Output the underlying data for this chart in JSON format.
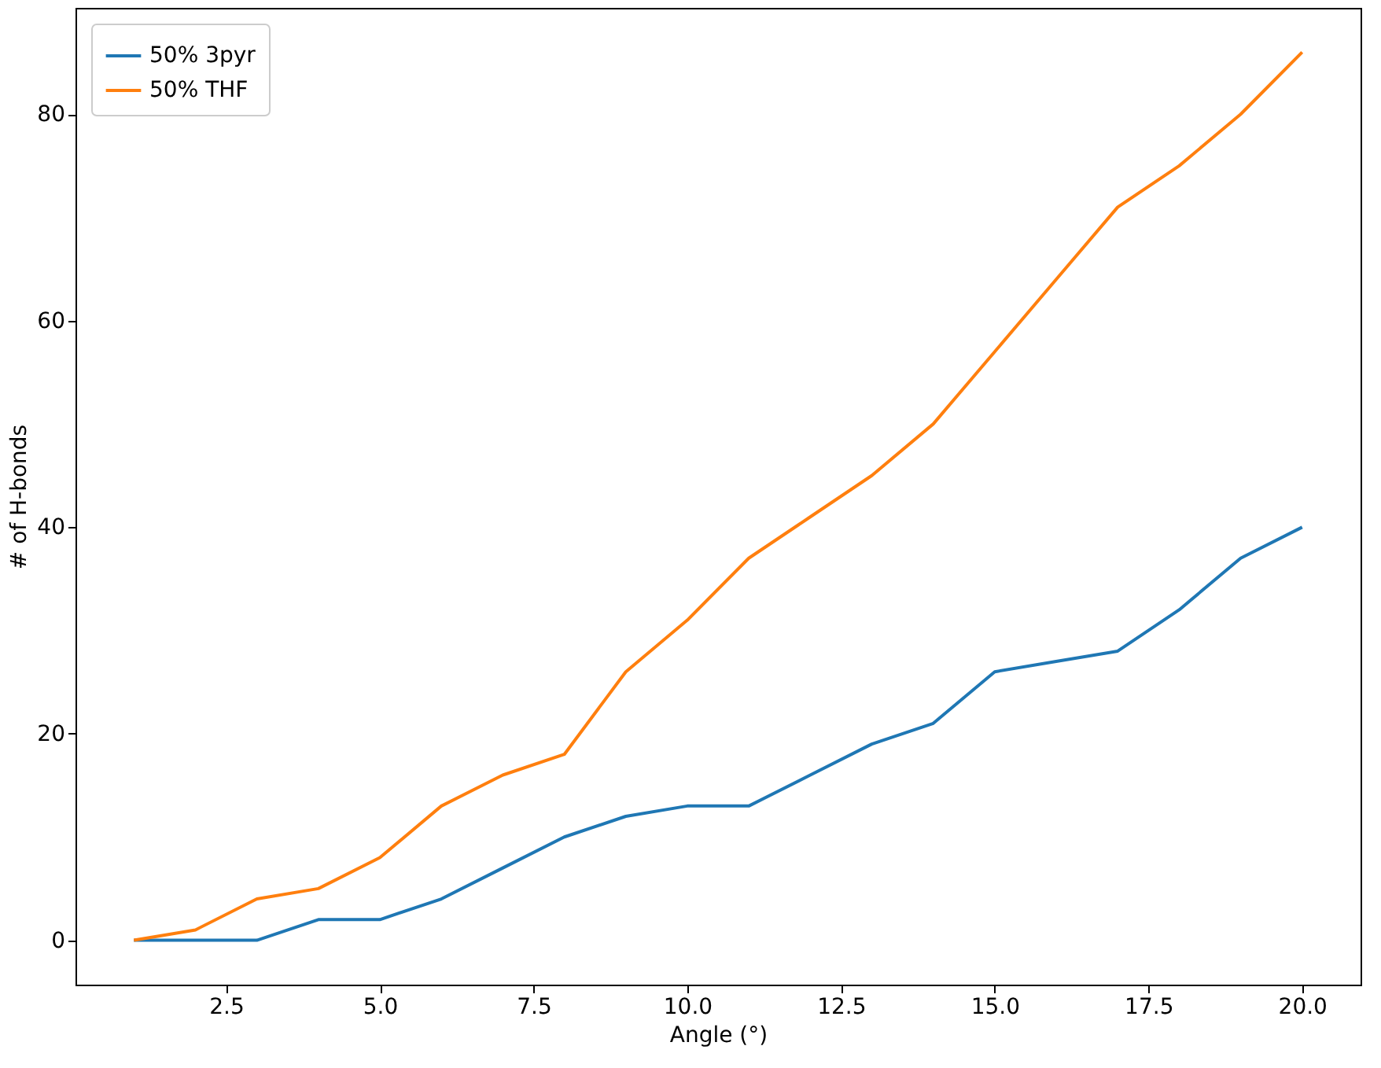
{
  "chart_data": {
    "type": "line",
    "xlabel": "Angle (°)",
    "ylabel": "# of H-bonds",
    "x": [
      1,
      2,
      3,
      4,
      5,
      6,
      7,
      8,
      9,
      10,
      11,
      12,
      13,
      14,
      15,
      16,
      17,
      18,
      19,
      20
    ],
    "series": [
      {
        "name": "50% 3pyr",
        "color": "#1f77b4",
        "values": [
          0,
          0,
          0,
          2,
          2,
          4,
          7,
          10,
          12,
          13,
          13,
          16,
          19,
          21,
          26,
          27,
          28,
          32,
          37,
          40
        ]
      },
      {
        "name": "50% THF",
        "color": "#ff7f0e",
        "values": [
          0,
          1,
          4,
          5,
          8,
          13,
          16,
          18,
          26,
          31,
          37,
          41,
          45,
          50,
          57,
          64,
          71,
          75,
          80,
          86
        ]
      }
    ],
    "xlim": [
      0.05,
      20.95
    ],
    "ylim": [
      -4.3,
      90.3
    ],
    "xticks": [
      {
        "value": 2.5,
        "label": "2.5"
      },
      {
        "value": 5,
        "label": "5.0"
      },
      {
        "value": 7.5,
        "label": "7.5"
      },
      {
        "value": 10,
        "label": "10.0"
      },
      {
        "value": 12.5,
        "label": "12.5"
      },
      {
        "value": 15,
        "label": "15.0"
      },
      {
        "value": 17.5,
        "label": "17.5"
      },
      {
        "value": 20,
        "label": "20.0"
      }
    ],
    "yticks": [
      0,
      20,
      40,
      60,
      80
    ],
    "grid": false,
    "legend": "top left",
    "marker": "none",
    "line_style": "solid"
  }
}
